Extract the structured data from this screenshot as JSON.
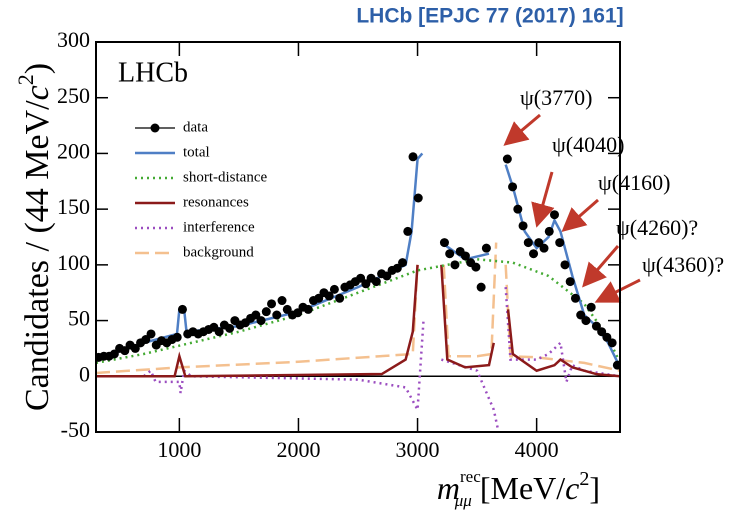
{
  "chart_data": {
    "type": "line",
    "title": "LHCb [EPJC 77 (2017) 161]",
    "experiment_label": "LHCb",
    "ylabel": [
      "Candidates / (44 MeV/",
      "c",
      "2",
      ")"
    ],
    "xlabel": [
      "m",
      "rec",
      "μμ",
      " [MeV/",
      "c",
      "2",
      "]"
    ],
    "xlim": [
      300,
      4700
    ],
    "ylim": [
      -50,
      300
    ],
    "xticks": [
      1000,
      2000,
      3000,
      4000
    ],
    "yticks": [
      -50,
      0,
      50,
      100,
      150,
      200,
      250,
      300
    ],
    "legend": "upper left",
    "annotations": [
      "ψ(3770)",
      "ψ(4040)",
      "ψ(4160)",
      "ψ(4260)?",
      "ψ(4360)?"
    ],
    "series": [
      {
        "name": "data",
        "color": "#000000",
        "style": "points",
        "x": [
          322,
          366,
          410,
          454,
          498,
          542,
          586,
          630,
          674,
          718,
          762,
          806,
          850,
          894,
          938,
          982,
          1026,
          1070,
          1114,
          1158,
          1202,
          1246,
          1290,
          1334,
          1378,
          1422,
          1466,
          1510,
          1554,
          1598,
          1642,
          1686,
          1730,
          1774,
          1818,
          1862,
          1906,
          1950,
          1994,
          2038,
          2082,
          2126,
          2170,
          2214,
          2258,
          2302,
          2346,
          2390,
          2434,
          2478,
          2522,
          2566,
          2610,
          2654,
          2698,
          2742,
          2786,
          2830,
          2874,
          2918,
          2962,
          3006,
          3050,
          3094,
          3138,
          3182,
          3226,
          3270,
          3314,
          3358,
          3402,
          3446,
          3490,
          3534,
          3578,
          3622,
          3666,
          3710,
          3754,
          3798,
          3842,
          3886,
          3930,
          3974,
          4018,
          4062,
          4106,
          4150,
          4194,
          4238,
          4282,
          4326,
          4370,
          4414,
          4458,
          4502,
          4546,
          4590,
          4634,
          4678
        ],
        "values": [
          17,
          18,
          18,
          20,
          25,
          23,
          28,
          25,
          30,
          33,
          38,
          28,
          32,
          30,
          33,
          35,
          60,
          38,
          40,
          38,
          40,
          42,
          44,
          40,
          46,
          43,
          50,
          46,
          48,
          52,
          55,
          50,
          58,
          65,
          55,
          68,
          60,
          55,
          57,
          62,
          60,
          68,
          70,
          75,
          72,
          78,
          70,
          80,
          82,
          85,
          88,
          83,
          88,
          85,
          92,
          90,
          95,
          97,
          102,
          130,
          197,
          160,
          null,
          null,
          null,
          null,
          120,
          110,
          100,
          112,
          108,
          102,
          98,
          80,
          115,
          null,
          null,
          null,
          195,
          170,
          150,
          135,
          120,
          110,
          120,
          115,
          130,
          145,
          120,
          100,
          85,
          70,
          55,
          50,
          62,
          45,
          40,
          35,
          30,
          10
        ]
      },
      {
        "name": "total",
        "color": "#4f7fc5",
        "style": "solid",
        "x": [
          300,
          700,
          980,
          1000,
          1040,
          1060,
          1500,
          2000,
          2500,
          2900,
          2950,
          3000,
          3040,
          3080,
          3200,
          3400,
          3600,
          3660,
          3740,
          3800,
          3900,
          4000,
          4100,
          4150,
          4200,
          4300,
          4400,
          4500,
          4600,
          4700
        ],
        "values": [
          15,
          30,
          38,
          60,
          60,
          40,
          45,
          58,
          80,
          100,
          130,
          195,
          200,
          null,
          120,
          105,
          110,
          null,
          190,
          170,
          130,
          115,
          125,
          140,
          130,
          90,
          55,
          45,
          30,
          8
        ]
      },
      {
        "name": "short-distance",
        "color": "#44aa33",
        "style": "dotted",
        "x": [
          300,
          700,
          1100,
          1500,
          2000,
          2500,
          3000,
          3500,
          3800,
          4100,
          4400,
          4600,
          4700
        ],
        "values": [
          12,
          20,
          30,
          40,
          55,
          75,
          95,
          105,
          102,
          90,
          65,
          35,
          12
        ]
      },
      {
        "name": "resonances",
        "color": "#8b1a1a",
        "style": "solid",
        "x": [
          300,
          960,
          1000,
          1050,
          2700,
          2900,
          2960,
          3000,
          3100,
          3200,
          3250,
          3400,
          3600,
          3640,
          3700,
          3760,
          3800,
          4000,
          4150,
          4200,
          4300,
          4500,
          4700
        ],
        "values": [
          0,
          0,
          18,
          0,
          2,
          15,
          40,
          100,
          null,
          100,
          15,
          8,
          10,
          30,
          null,
          60,
          20,
          5,
          10,
          15,
          8,
          2,
          0
        ]
      },
      {
        "name": "interference",
        "color": "#9b4dc0",
        "style": "dotted",
        "x": [
          300,
          700,
          760,
          800,
          1000,
          1010,
          1040,
          1100,
          2500,
          2900,
          3000,
          3050,
          3120,
          3200,
          3500,
          3640,
          3680,
          3710,
          3740,
          3780,
          4000,
          4100,
          4200,
          4250,
          4300,
          4400,
          4700
        ],
        "values": [
          0,
          0,
          5,
          -5,
          -5,
          -15,
          5,
          0,
          -3,
          -10,
          -30,
          50,
          null,
          15,
          5,
          -30,
          -50,
          null,
          80,
          15,
          15,
          20,
          30,
          -5,
          10,
          5,
          0
        ]
      },
      {
        "name": "background",
        "color": "#f4c08f",
        "style": "dashed",
        "x": [
          300,
          1000,
          2000,
          2960,
          3000,
          3100,
          3220,
          3260,
          3500,
          3620,
          3660,
          3700,
          3740,
          3780,
          4000,
          4400,
          4700
        ],
        "values": [
          3,
          8,
          13,
          20,
          100,
          null,
          100,
          18,
          18,
          20,
          120,
          null,
          100,
          18,
          17,
          12,
          5
        ]
      }
    ]
  }
}
